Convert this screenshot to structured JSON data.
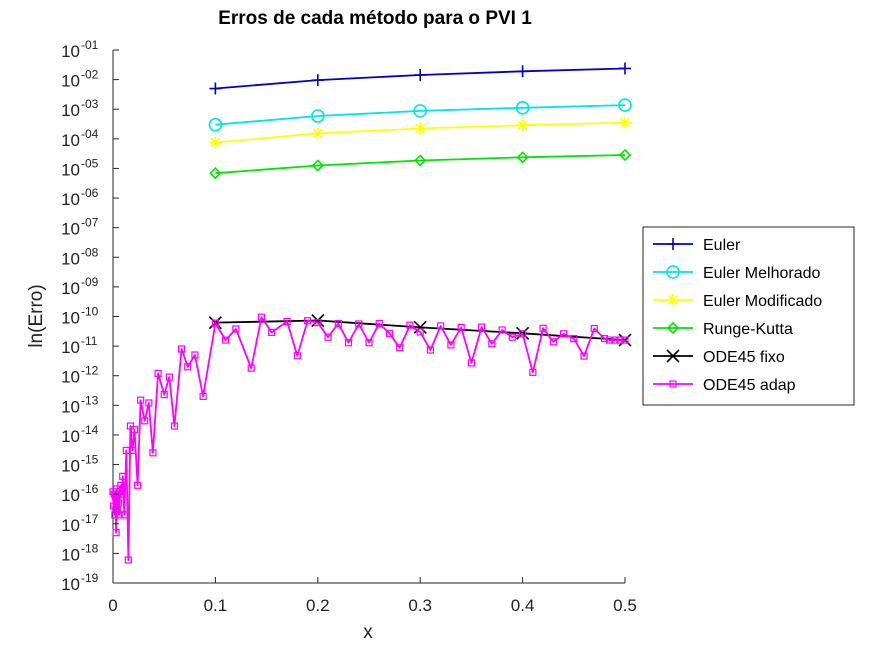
{
  "chart_data": {
    "type": "line",
    "title": "Erros de cada método para o PVI 1",
    "xlabel": "x",
    "ylabel": "ln(Erro)",
    "xlim": [
      0,
      0.5
    ],
    "ylim": [
      1e-19,
      0.1
    ],
    "yscale": "log",
    "x_ticks": [
      "0",
      "0.1",
      "0.2",
      "0.3",
      "0.4",
      "0.5"
    ],
    "y_ticks": [
      {
        "base": "10",
        "exp": "-01"
      },
      {
        "base": "10",
        "exp": "-02"
      },
      {
        "base": "10",
        "exp": "-03"
      },
      {
        "base": "10",
        "exp": "-04"
      },
      {
        "base": "10",
        "exp": "-05"
      },
      {
        "base": "10",
        "exp": "-06"
      },
      {
        "base": "10",
        "exp": "-07"
      },
      {
        "base": "10",
        "exp": "-08"
      },
      {
        "base": "10",
        "exp": "-09"
      },
      {
        "base": "10",
        "exp": "-10"
      },
      {
        "base": "10",
        "exp": "-11"
      },
      {
        "base": "10",
        "exp": "-12"
      },
      {
        "base": "10",
        "exp": "-13"
      },
      {
        "base": "10",
        "exp": "-14"
      },
      {
        "base": "10",
        "exp": "-15"
      },
      {
        "base": "10",
        "exp": "-16"
      },
      {
        "base": "10",
        "exp": "-17"
      },
      {
        "base": "10",
        "exp": "-18"
      },
      {
        "base": "10",
        "exp": "-19"
      }
    ],
    "grid": false,
    "legend_position": "right",
    "series": [
      {
        "name": "Euler",
        "color": "#0000cc",
        "marker": "plus",
        "x": [
          0.1,
          0.2,
          0.3,
          0.4,
          0.5
        ],
        "y": [
          0.005,
          0.0096,
          0.0143,
          0.0191,
          0.0238
        ]
      },
      {
        "name": "Euler Melhorado",
        "color": "#00e5e5",
        "marker": "circle",
        "x": [
          0.1,
          0.2,
          0.3,
          0.4,
          0.5
        ],
        "y": [
          0.0003,
          0.00059,
          0.00088,
          0.00112,
          0.00138
        ]
      },
      {
        "name": "Euler Modificado",
        "color": "#ffff00",
        "marker": "asterisk",
        "x": [
          0.1,
          0.2,
          0.3,
          0.4,
          0.5
        ],
        "y": [
          7.5e-05,
          0.000152,
          0.000223,
          0.000288,
          0.000354
        ]
      },
      {
        "name": "Runge-Kutta",
        "color": "#00e600",
        "marker": "diamond",
        "x": [
          0.1,
          0.2,
          0.3,
          0.4,
          0.5
        ],
        "y": [
          6.9e-06,
          1.26e-05,
          1.86e-05,
          2.37e-05,
          2.85e-05
        ]
      },
      {
        "name": "ODE45 fixo",
        "color": "#000000",
        "marker": "cross",
        "x": [
          0.1,
          0.2,
          0.3,
          0.4,
          0.5
        ],
        "y": [
          6.2e-11,
          7.3e-11,
          4.3e-11,
          2.7e-11,
          1.6e-11
        ]
      },
      {
        "name": "ODE45 adap",
        "color": "#ff00ff",
        "marker": "square",
        "x": [
          0.0,
          0.0006,
          0.0012,
          0.0018,
          0.0024,
          0.003,
          0.0036,
          0.0042,
          0.0048,
          0.0054,
          0.006,
          0.0068,
          0.0076,
          0.0085,
          0.0095,
          0.011,
          0.013,
          0.015,
          0.017,
          0.019,
          0.021,
          0.024,
          0.027,
          0.031,
          0.035,
          0.039,
          0.044,
          0.05,
          0.055,
          0.06,
          0.067,
          0.073,
          0.08,
          0.088,
          0.1,
          0.11,
          0.12,
          0.135,
          0.145,
          0.155,
          0.17,
          0.18,
          0.19,
          0.2,
          0.21,
          0.22,
          0.23,
          0.24,
          0.25,
          0.26,
          0.27,
          0.28,
          0.29,
          0.3,
          0.31,
          0.32,
          0.33,
          0.34,
          0.35,
          0.36,
          0.37,
          0.38,
          0.39,
          0.4,
          0.41,
          0.42,
          0.43,
          0.44,
          0.45,
          0.46,
          0.47,
          0.48,
          0.485,
          0.49,
          0.495,
          0.5
        ],
        "y": [
          1.2e-16,
          4e-17,
          1e-16,
          2e-17,
          8e-17,
          5e-18,
          1.5e-16,
          3e-17,
          1e-16,
          5e-17,
          2e-17,
          1.2e-16,
          2e-16,
          1e-16,
          4e-16,
          2e-17,
          3e-15,
          6e-19,
          2e-14,
          3e-15,
          1.5e-14,
          2e-16,
          1.5e-13,
          3e-14,
          1.2e-13,
          2.5e-15,
          1.2e-12,
          2.3e-13,
          9e-13,
          2e-14,
          8e-12,
          2e-12,
          5e-12,
          2e-13,
          6e-11,
          1.6e-11,
          3.8e-11,
          1.8e-12,
          9.5e-11,
          2.9e-11,
          6.8e-11,
          4.7e-12,
          7.2e-11,
          6.2e-11,
          2e-11,
          5.8e-11,
          1.3e-11,
          5.6e-11,
          1.3e-11,
          5.8e-11,
          2.7e-11,
          8.8e-12,
          5.1e-11,
          3e-11,
          7.4e-12,
          4.8e-11,
          1.1e-11,
          4.3e-11,
          2.7e-12,
          4.4e-11,
          1.2e-11,
          3.5e-11,
          2e-11,
          2.6e-11,
          1.3e-12,
          4e-11,
          1.4e-11,
          2.6e-11,
          1.8e-11,
          4.6e-12,
          3.9e-11,
          1.8e-11,
          1.6e-11,
          1.6e-11,
          1.6e-11,
          1.6e-11
        ]
      }
    ]
  }
}
